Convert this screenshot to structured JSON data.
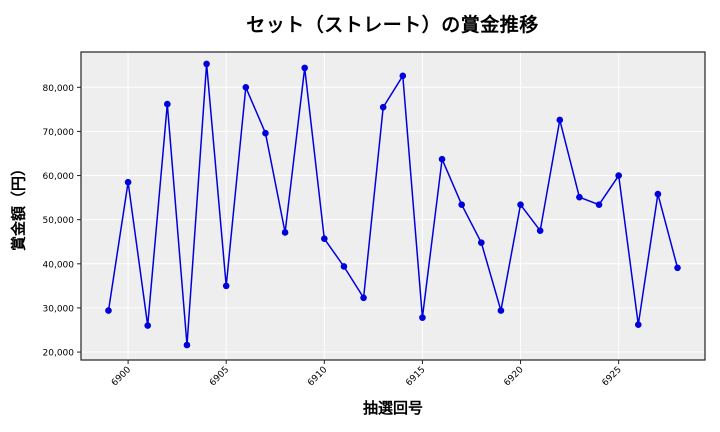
{
  "chart_data": {
    "type": "line",
    "title": "セット（ストレート）の賞金推移",
    "xlabel": "抽選回号",
    "ylabel": "賞金額（円）",
    "x": [
      6899,
      6900,
      6901,
      6902,
      6903,
      6904,
      6905,
      6906,
      6907,
      6908,
      6909,
      6910,
      6911,
      6912,
      6913,
      6914,
      6915,
      6916,
      6917,
      6918,
      6919,
      6920,
      6921,
      6922,
      6923,
      6924,
      6925,
      6926,
      6927,
      6928
    ],
    "series": [
      {
        "name": "賞金額",
        "color": "#0000dd",
        "marker": "circle",
        "values": [
          29400,
          58500,
          26000,
          76200,
          21600,
          85300,
          35000,
          80000,
          69600,
          47100,
          84400,
          45700,
          39400,
          32300,
          75500,
          82600,
          27800,
          63700,
          53400,
          44800,
          29400,
          53400,
          47500,
          72600,
          55100,
          53400,
          60000,
          26200,
          55800,
          39100
        ]
      }
    ],
    "xticks": [
      6900,
      6905,
      6910,
      6915,
      6920,
      6925
    ],
    "xtick_labels": [
      "6900",
      "6905",
      "6910",
      "6915",
      "6920",
      "6925"
    ],
    "yticks": [
      20000,
      30000,
      40000,
      50000,
      60000,
      70000,
      80000
    ],
    "ytick_labels": [
      "20,000",
      "30,000",
      "40,000",
      "50,000",
      "60,000",
      "70,000",
      "80,000"
    ],
    "xlim": [
      6897.6,
      6929.4
    ],
    "ylim": [
      18200,
      88000
    ],
    "grid": true,
    "legend": null,
    "colors": {
      "plot_bg": "#eeeeee",
      "grid": "#ffffff",
      "line": "#0000dd",
      "frame": "#222222"
    }
  }
}
